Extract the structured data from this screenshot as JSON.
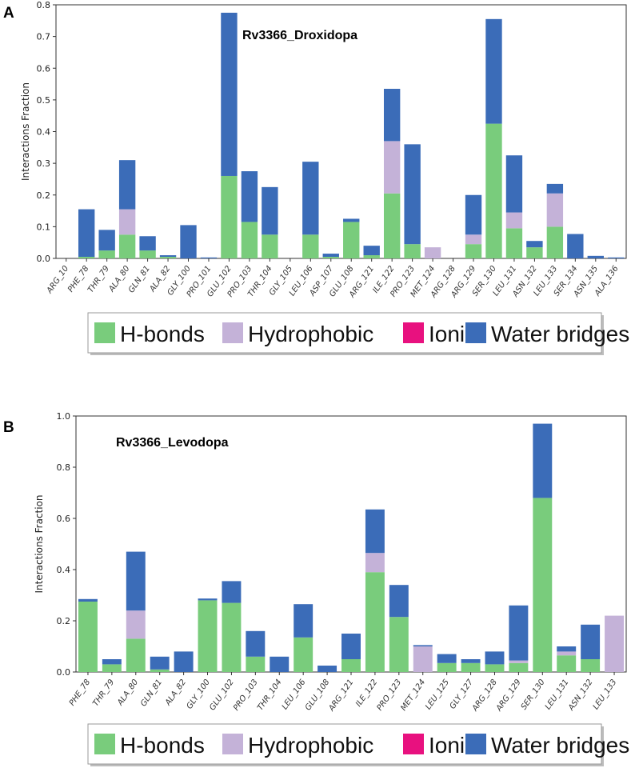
{
  "colors": {
    "hbonds": "#79cc7c",
    "hydrophobic": "#c4b2d8",
    "ionic": "#e8117f",
    "water": "#3b6cb8"
  },
  "legend": {
    "items": [
      {
        "label": "H-bonds",
        "key": "hbonds"
      },
      {
        "label": "Hydrophobic",
        "key": "hydrophobic"
      },
      {
        "label": "Ionic",
        "key": "ionic"
      },
      {
        "label": "Water bridges",
        "key": "water"
      }
    ]
  },
  "chart_data": [
    {
      "panel": "A",
      "type": "bar",
      "stacked": true,
      "title": "Rv3366_Droxidopa",
      "ylabel": "Interactions Fraction",
      "xlabel": "",
      "ylim": [
        0,
        0.8
      ],
      "yticks": [
        0.0,
        0.1,
        0.2,
        0.3,
        0.4,
        0.5,
        0.6,
        0.7,
        0.8
      ],
      "ytick_labels": [
        "0.0",
        "0.1",
        "0.2",
        "0.3",
        "0.4",
        "0.5",
        "0.6",
        "0.7",
        "0.8"
      ],
      "categories": [
        "ARG_10",
        "PHE_78",
        "THR_79",
        "ALA_80",
        "GLN_81",
        "ALA_82",
        "GLY_100",
        "PRO_101",
        "GLU_102",
        "PRO_103",
        "THR_104",
        "GLY_105",
        "LEU_106",
        "ASP_107",
        "GLU_108",
        "ARG_121",
        "ILE_122",
        "PRO_123",
        "MET_124",
        "ARG_128",
        "ARG_129",
        "SER_130",
        "LEU_131",
        "ASN_132",
        "LEU_133",
        "SER_134",
        "ASN_135",
        "ALA_136"
      ],
      "series": [
        {
          "name": "H-bonds",
          "key": "hbonds",
          "values": [
            0,
            0.005,
            0.025,
            0.075,
            0.025,
            0.005,
            0,
            0,
            0.26,
            0.115,
            0.075,
            0,
            0.075,
            0.005,
            0.115,
            0.01,
            0.205,
            0.045,
            0,
            0,
            0.045,
            0.425,
            0.095,
            0.035,
            0.1,
            0,
            0,
            0
          ]
        },
        {
          "name": "Hydrophobic",
          "key": "hydrophobic",
          "values": [
            0,
            0,
            0,
            0.08,
            0,
            0,
            0,
            0,
            0,
            0,
            0,
            0,
            0,
            0,
            0,
            0,
            0.165,
            0,
            0.035,
            0,
            0.03,
            0,
            0.05,
            0,
            0.105,
            0,
            0,
            0
          ]
        },
        {
          "name": "Ionic",
          "key": "ionic",
          "values": [
            0,
            0,
            0,
            0,
            0,
            0,
            0,
            0,
            0,
            0,
            0,
            0,
            0,
            0,
            0,
            0,
            0,
            0,
            0,
            0,
            0,
            0,
            0,
            0,
            0,
            0,
            0,
            0
          ]
        },
        {
          "name": "Water bridges",
          "key": "water",
          "values": [
            0,
            0.15,
            0.065,
            0.155,
            0.045,
            0.005,
            0.105,
            0.003,
            0.515,
            0.16,
            0.15,
            0,
            0.23,
            0.01,
            0.01,
            0.03,
            0.165,
            0.315,
            0,
            0,
            0.125,
            0.33,
            0.18,
            0.02,
            0.03,
            0.077,
            0.008,
            0.003
          ]
        }
      ],
      "legend_position": "bottom"
    },
    {
      "panel": "B",
      "type": "bar",
      "stacked": true,
      "title": "Rv3366_Levodopa",
      "ylabel": "Interactions Fraction",
      "xlabel": "",
      "ylim": [
        0,
        1.0
      ],
      "yticks": [
        0.0,
        0.2,
        0.4,
        0.6,
        0.8,
        1.0
      ],
      "ytick_labels": [
        "0.0",
        "0.2",
        "0.4",
        "0.6",
        "0.8",
        "1.0"
      ],
      "categories": [
        "PHE_78",
        "THR_79",
        "ALA_80",
        "GLN_81",
        "ALA_82",
        "GLY_100",
        "GLU_102",
        "PRO_103",
        "THR_104",
        "LEU_106",
        "GLU_108",
        "ARG_121",
        "ILE_122",
        "PRO_123",
        "MET_124",
        "LEU_125",
        "GLY_127",
        "ARG_128",
        "ARG_129",
        "SER_130",
        "LEU_131",
        "ASN_132",
        "LEU_133"
      ],
      "series": [
        {
          "name": "H-bonds",
          "key": "hbonds",
          "values": [
            0.275,
            0.03,
            0.13,
            0.01,
            0,
            0.28,
            0.27,
            0.06,
            0,
            0.135,
            0,
            0.05,
            0.39,
            0.215,
            0,
            0.035,
            0.035,
            0.03,
            0.035,
            0.68,
            0.065,
            0.05,
            0
          ]
        },
        {
          "name": "Hydrophobic",
          "key": "hydrophobic",
          "values": [
            0,
            0,
            0.11,
            0,
            0,
            0,
            0,
            0,
            0,
            0,
            0,
            0,
            0.075,
            0,
            0.1,
            0,
            0,
            0,
            0.01,
            0,
            0.015,
            0,
            0.22
          ]
        },
        {
          "name": "Ionic",
          "key": "ionic",
          "values": [
            0,
            0,
            0,
            0,
            0,
            0,
            0,
            0,
            0,
            0,
            0,
            0,
            0,
            0,
            0,
            0,
            0,
            0,
            0,
            0,
            0,
            0,
            0
          ]
        },
        {
          "name": "Water bridges",
          "key": "water",
          "values": [
            0.01,
            0.02,
            0.23,
            0.05,
            0.08,
            0.007,
            0.085,
            0.1,
            0.06,
            0.13,
            0.025,
            0.1,
            0.17,
            0.125,
            0.005,
            0.035,
            0.015,
            0.05,
            0.215,
            0.29,
            0.02,
            0.135,
            0
          ]
        }
      ],
      "legend_position": "bottom"
    }
  ]
}
